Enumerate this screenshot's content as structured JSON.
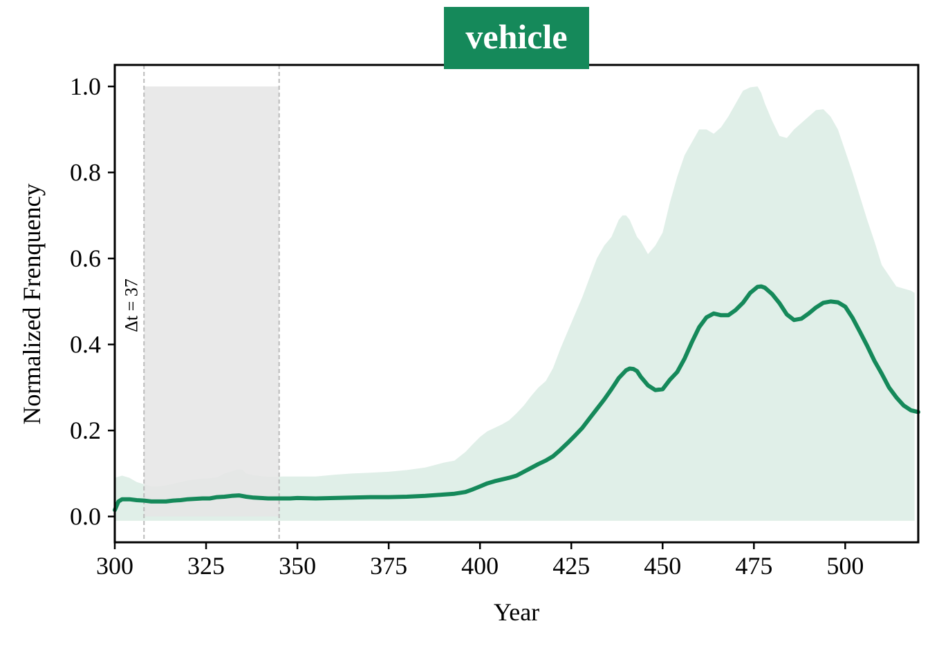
{
  "chart_data": {
    "type": "area",
    "title": "vehicle",
    "xlabel": "Year",
    "ylabel": "Normalized Frenquency",
    "xlim": [
      300,
      520
    ],
    "ylim": [
      -0.06,
      1.05
    ],
    "xticks": [
      300,
      325,
      350,
      375,
      400,
      425,
      450,
      475,
      500
    ],
    "yticks": [
      0.0,
      0.2,
      0.4,
      0.6,
      0.8,
      1.0
    ],
    "ytick_labels": [
      "0.0",
      "0.2",
      "0.4",
      "0.6",
      "0.8",
      "1.0"
    ],
    "colors": {
      "accent": "#15895a",
      "band": "#e0efe8",
      "window": "#e5e5e5",
      "window_line": "#bbbbbb"
    },
    "window": {
      "start": 308,
      "end": 345,
      "ymin": 0.0,
      "ymax": 1.0,
      "label": "Δt = 37"
    },
    "band_lower": -0.01,
    "series": [
      {
        "kind": "mean",
        "x": [
          300,
          301,
          302,
          304,
          306,
          308,
          310,
          312,
          314,
          316,
          318,
          320,
          322,
          324,
          326,
          328,
          330,
          332,
          334,
          336,
          338,
          340,
          342,
          344,
          346,
          348,
          350,
          355,
          360,
          365,
          370,
          375,
          380,
          385,
          390,
          393,
          396,
          398,
          400,
          402,
          404,
          406,
          408,
          410,
          412,
          414,
          416,
          418,
          420,
          422,
          424,
          426,
          428,
          430,
          432,
          434,
          436,
          438,
          440,
          441,
          442,
          443,
          444,
          446,
          448,
          450,
          452,
          454,
          456,
          458,
          460,
          462,
          464,
          466,
          468,
          470,
          472,
          474,
          476,
          477,
          478,
          480,
          482,
          484,
          486,
          488,
          490,
          492,
          494,
          496,
          498,
          500,
          502,
          504,
          506,
          508,
          510,
          512,
          514,
          516,
          518,
          520
        ],
        "y": [
          0.015,
          0.035,
          0.04,
          0.04,
          0.038,
          0.037,
          0.035,
          0.035,
          0.035,
          0.037,
          0.038,
          0.04,
          0.041,
          0.042,
          0.042,
          0.045,
          0.046,
          0.048,
          0.049,
          0.046,
          0.044,
          0.043,
          0.042,
          0.042,
          0.042,
          0.042,
          0.043,
          0.042,
          0.043,
          0.044,
          0.045,
          0.045,
          0.046,
          0.048,
          0.051,
          0.053,
          0.057,
          0.063,
          0.07,
          0.077,
          0.082,
          0.086,
          0.09,
          0.095,
          0.104,
          0.113,
          0.122,
          0.13,
          0.14,
          0.155,
          0.171,
          0.188,
          0.206,
          0.228,
          0.25,
          0.272,
          0.296,
          0.322,
          0.34,
          0.344,
          0.343,
          0.338,
          0.325,
          0.305,
          0.294,
          0.296,
          0.318,
          0.336,
          0.367,
          0.405,
          0.44,
          0.463,
          0.472,
          0.468,
          0.468,
          0.48,
          0.497,
          0.52,
          0.534,
          0.535,
          0.532,
          0.517,
          0.496,
          0.47,
          0.457,
          0.46,
          0.472,
          0.486,
          0.497,
          0.5,
          0.498,
          0.488,
          0.462,
          0.43,
          0.397,
          0.362,
          0.332,
          0.3,
          0.277,
          0.258,
          0.247,
          0.243
        ]
      },
      {
        "kind": "upper",
        "x": [
          300,
          302,
          304,
          306,
          308,
          310,
          312,
          314,
          316,
          318,
          320,
          322,
          324,
          326,
          328,
          330,
          332,
          334,
          335,
          336,
          338,
          340,
          342,
          344,
          346,
          348,
          350,
          355,
          360,
          365,
          370,
          375,
          380,
          385,
          390,
          393,
          396,
          398,
          400,
          402,
          404,
          406,
          408,
          410,
          412,
          414,
          416,
          418,
          420,
          422,
          424,
          426,
          428,
          430,
          432,
          434,
          436,
          438,
          439,
          440,
          441,
          442,
          443,
          444,
          446,
          448,
          450,
          452,
          454,
          456,
          458,
          460,
          462,
          464,
          466,
          468,
          470,
          472,
          474,
          476,
          477,
          478,
          480,
          482,
          484,
          486,
          488,
          490,
          492,
          494,
          496,
          498,
          500,
          502,
          504,
          506,
          508,
          510,
          512,
          514,
          516,
          518,
          519
        ],
        "y": [
          0.09,
          0.095,
          0.09,
          0.08,
          0.075,
          0.07,
          0.07,
          0.072,
          0.076,
          0.08,
          0.084,
          0.086,
          0.088,
          0.089,
          0.091,
          0.1,
          0.105,
          0.11,
          0.108,
          0.1,
          0.096,
          0.094,
          0.092,
          0.092,
          0.093,
          0.093,
          0.093,
          0.093,
          0.097,
          0.1,
          0.102,
          0.104,
          0.108,
          0.114,
          0.125,
          0.13,
          0.15,
          0.168,
          0.185,
          0.198,
          0.206,
          0.214,
          0.224,
          0.24,
          0.258,
          0.28,
          0.3,
          0.315,
          0.345,
          0.39,
          0.43,
          0.47,
          0.51,
          0.555,
          0.6,
          0.63,
          0.65,
          0.69,
          0.7,
          0.7,
          0.69,
          0.67,
          0.65,
          0.64,
          0.61,
          0.63,
          0.66,
          0.73,
          0.79,
          0.84,
          0.87,
          0.9,
          0.9,
          0.89,
          0.905,
          0.93,
          0.96,
          0.99,
          0.998,
          1.0,
          0.985,
          0.96,
          0.92,
          0.885,
          0.88,
          0.9,
          0.915,
          0.93,
          0.945,
          0.947,
          0.93,
          0.9,
          0.85,
          0.8,
          0.745,
          0.69,
          0.64,
          0.585,
          0.56,
          0.535,
          0.53,
          0.525,
          0.52
        ]
      }
    ]
  }
}
